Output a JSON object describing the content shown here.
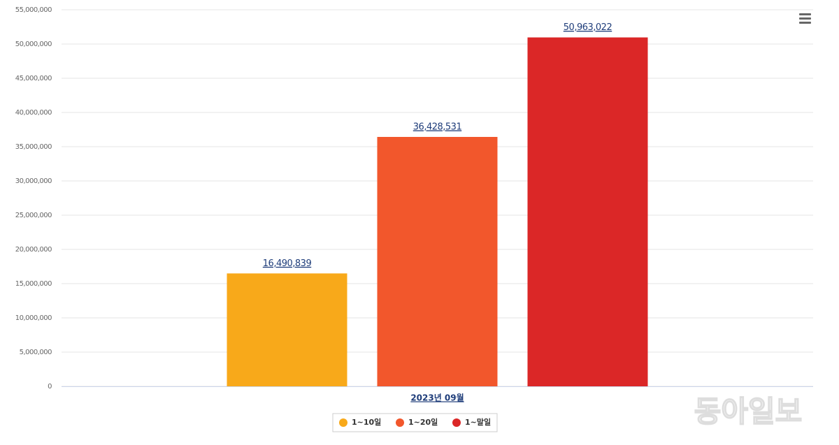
{
  "chart_data": {
    "type": "bar",
    "categories": [
      "2023년 09월"
    ],
    "series": [
      {
        "name": "1~10일",
        "color": "#f8a91a",
        "values": [
          16490839
        ],
        "value_labels": [
          "16,490,839"
        ]
      },
      {
        "name": "1~20일",
        "color": "#f2572c",
        "values": [
          36428531
        ],
        "value_labels": [
          "36,428,531"
        ]
      },
      {
        "name": "1~말일",
        "color": "#db2727",
        "values": [
          50963022
        ],
        "value_labels": [
          "50,963,022"
        ]
      }
    ],
    "ylim": [
      0,
      55000000
    ],
    "yticks": [
      0,
      {
        "value": 5000000,
        "label": "5,000,000"
      },
      {
        "value": 10000000,
        "label": "10,000,000"
      },
      {
        "value": 15000000,
        "label": "15,000,000"
      },
      {
        "value": 20000000,
        "label": "20,000,000"
      },
      {
        "value": 25000000,
        "label": "25,000,000"
      },
      {
        "value": 30000000,
        "label": "30,000,000"
      },
      {
        "value": 35000000,
        "label": "35,000,000"
      },
      {
        "value": 40000000,
        "label": "40,000,000"
      },
      {
        "value": 45000000,
        "label": "45,000,000"
      },
      {
        "value": 50000000,
        "label": "50,000,000"
      },
      {
        "value": 55000000,
        "label": "55,000,000"
      }
    ],
    "grid": true,
    "legend": "bottom",
    "watermark": "동아일보"
  }
}
